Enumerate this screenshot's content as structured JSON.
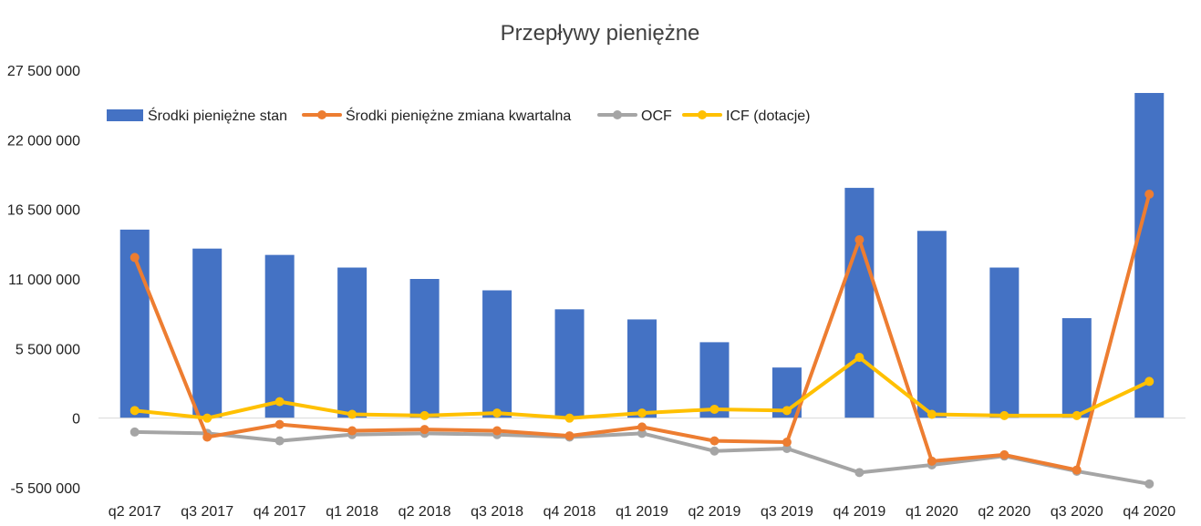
{
  "chart_data": {
    "type": "bar+line",
    "title": "Przepływy pieniężne",
    "categories": [
      "q2 2017",
      "q3 2017",
      "q4 2017",
      "q1 2018",
      "q2 2018",
      "q3 2018",
      "q4 2018",
      "q1 2019",
      "q2 2019",
      "q3 2019",
      "q4 2019",
      "q1 2020",
      "q2 2020",
      "q3 2020",
      "q4 2020"
    ],
    "y_ticks": [
      "27 500 000",
      "22 000 000",
      "16 500 000",
      "11 000 000",
      "5 500 000",
      "0",
      "-5 500 000"
    ],
    "ylim": [
      -5500000,
      27500000
    ],
    "legend_position": "top-left",
    "grid": false,
    "series": [
      {
        "name": "Środki pieniężne stan",
        "kind": "bar",
        "color": "#4472C4",
        "values": [
          14900000,
          13400000,
          12900000,
          11900000,
          11000000,
          10100000,
          8600000,
          7800000,
          6000000,
          4000000,
          18200000,
          14800000,
          11900000,
          7900000,
          25700000
        ]
      },
      {
        "name": "Środki pieniężne zmiana kwartalna",
        "kind": "line",
        "color": "#ED7D31",
        "values": [
          12700000,
          -1500000,
          -500000,
          -1000000,
          -900000,
          -1000000,
          -1400000,
          -700000,
          -1800000,
          -1900000,
          14100000,
          -3400000,
          -2900000,
          -4100000,
          17700000
        ]
      },
      {
        "name": "OCF",
        "kind": "line",
        "color": "#A5A5A5",
        "values": [
          -1100000,
          -1200000,
          -1800000,
          -1300000,
          -1200000,
          -1300000,
          -1500000,
          -1200000,
          -2600000,
          -2400000,
          -4300000,
          -3700000,
          -3000000,
          -4200000,
          -5200000
        ]
      },
      {
        "name": "ICF (dotacje)",
        "kind": "line",
        "color": "#FFC000",
        "values": [
          600000,
          0,
          1300000,
          300000,
          200000,
          400000,
          0,
          400000,
          700000,
          600000,
          4800000,
          300000,
          200000,
          200000,
          2900000
        ]
      }
    ]
  }
}
